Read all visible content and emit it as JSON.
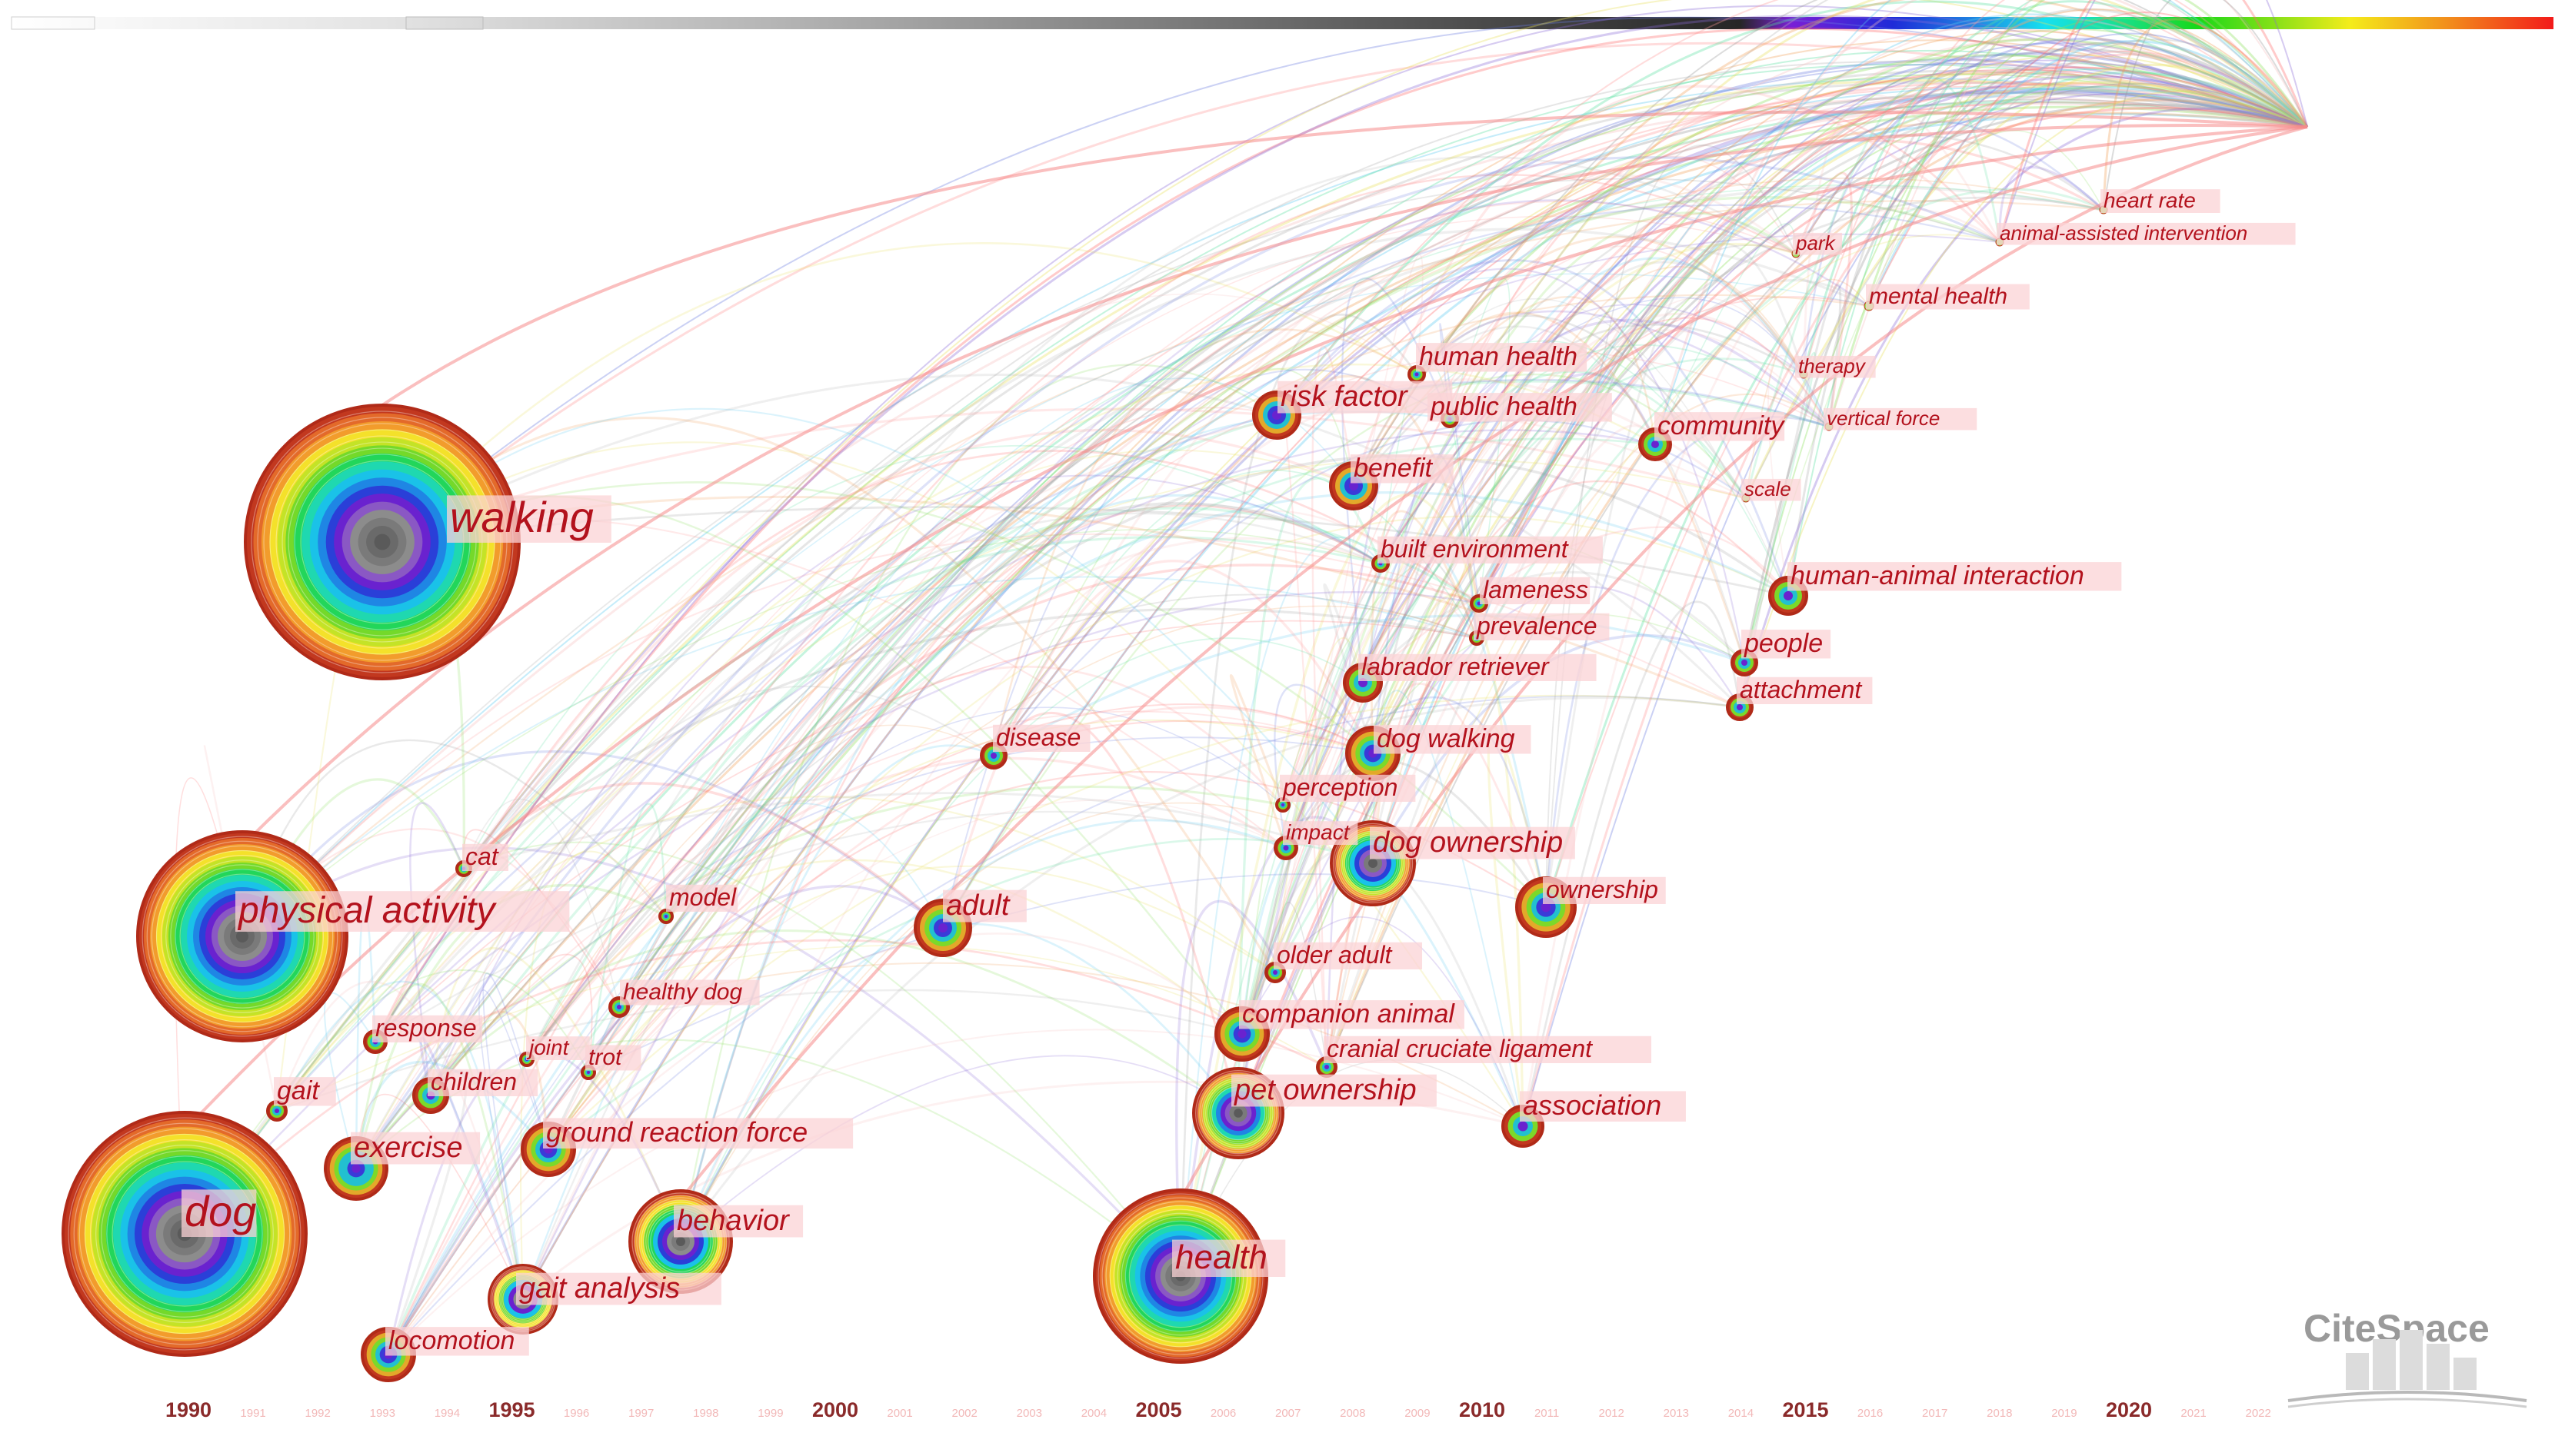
{
  "logo": {
    "name": "CiteSpace"
  },
  "colors": {
    "node_border": "#c2381f",
    "label_color": "#b3121d",
    "label_bg": "#fbd3d6",
    "timeline_gradient": [
      "#ffffff",
      "#e6e6e6",
      "#bdbdbd",
      "#8f8f8f",
      "#5a5a5a",
      "#2e2e2e",
      "#7a1fd6",
      "#1e2bd8",
      "#1f7fe0",
      "#16e0f0",
      "#19e08c",
      "#18d818",
      "#86e018",
      "#f4ec1a",
      "#f28a1c",
      "#f21a1a"
    ]
  },
  "timeline": {
    "major_years": [
      "1990",
      "1995",
      "2000",
      "2005",
      "2010",
      "2015",
      "2020"
    ],
    "minor_years": [
      "1991",
      "1992",
      "1993",
      "1994",
      "1996",
      "1997",
      "1998",
      "1999",
      "2001",
      "2002",
      "2003",
      "2004",
      "2006",
      "2007",
      "2008",
      "2009",
      "2011",
      "2012",
      "2013",
      "2014",
      "2016",
      "2017",
      "2018",
      "2019",
      "2021",
      "2022"
    ]
  },
  "nodes": [
    {
      "label": "walking",
      "year": 1990,
      "size": "xl"
    },
    {
      "label": "physical activity",
      "year": 1990,
      "size": "l"
    },
    {
      "label": "dog",
      "year": 1990,
      "size": "xl"
    },
    {
      "label": "health",
      "year": 2005,
      "size": "l"
    },
    {
      "label": "behavior",
      "year": 1997,
      "size": "m"
    },
    {
      "label": "gait analysis",
      "year": 1995,
      "size": "s"
    },
    {
      "label": "locomotion",
      "year": 1993,
      "size": "s"
    },
    {
      "label": "exercise",
      "year": 1993,
      "size": "s"
    },
    {
      "label": "ground reaction force",
      "year": 1995,
      "size": "s"
    },
    {
      "label": "gait",
      "year": 1992,
      "size": "xs"
    },
    {
      "label": "children",
      "year": 1994,
      "size": "xs"
    },
    {
      "label": "response",
      "year": 1993,
      "size": "xs"
    },
    {
      "label": "joint",
      "year": 1995,
      "size": "xs"
    },
    {
      "label": "trot",
      "year": 1996,
      "size": "xs"
    },
    {
      "label": "healthy dog",
      "year": 1997,
      "size": "xs"
    },
    {
      "label": "model",
      "year": 1997,
      "size": "xs"
    },
    {
      "label": "cat",
      "year": 1994,
      "size": "xs"
    },
    {
      "label": "disease",
      "year": 2002,
      "size": "xs"
    },
    {
      "label": "adult",
      "year": 2002,
      "size": "s"
    },
    {
      "label": "risk factor",
      "year": 2008,
      "size": "s"
    },
    {
      "label": "human health",
      "year": 2009,
      "size": "xs"
    },
    {
      "label": "public health",
      "year": 2009,
      "size": "xs"
    },
    {
      "label": "benefit",
      "year": 2008,
      "size": "s"
    },
    {
      "label": "built environment",
      "year": 2009,
      "size": "xs"
    },
    {
      "label": "lameness",
      "year": 2010,
      "size": "xs"
    },
    {
      "label": "prevalence",
      "year": 2010,
      "size": "xs"
    },
    {
      "label": "labrador retriever",
      "year": 2008,
      "size": "xs"
    },
    {
      "label": "dog walking",
      "year": 2008,
      "size": "s"
    },
    {
      "label": "perception",
      "year": 2007,
      "size": "xs"
    },
    {
      "label": "impact",
      "year": 2007,
      "size": "xs"
    },
    {
      "label": "dog ownership",
      "year": 2008,
      "size": "m"
    },
    {
      "label": "ownership",
      "year": 2011,
      "size": "s"
    },
    {
      "label": "older adult",
      "year": 2007,
      "size": "xs"
    },
    {
      "label": "companion animal",
      "year": 2007,
      "size": "s"
    },
    {
      "label": "cranial cruciate ligament",
      "year": 2008,
      "size": "xs"
    },
    {
      "label": "pet ownership",
      "year": 2007,
      "size": "m"
    },
    {
      "label": "association",
      "year": 2011,
      "size": "s"
    },
    {
      "label": "community",
      "year": 2012,
      "size": "xs"
    },
    {
      "label": "human-animal interaction",
      "year": 2014,
      "size": "s"
    },
    {
      "label": "people",
      "year": 2014,
      "size": "xs"
    },
    {
      "label": "attachment",
      "year": 2014,
      "size": "xs"
    },
    {
      "label": "park",
      "year": 2015,
      "size": "xs"
    },
    {
      "label": "mental health",
      "year": 2016,
      "size": "xs"
    },
    {
      "label": "therapy",
      "year": 2015,
      "size": "xs"
    },
    {
      "label": "vertical force",
      "year": 2015,
      "size": "xs"
    },
    {
      "label": "scale",
      "year": 2014,
      "size": "xs"
    },
    {
      "label": "heart rate",
      "year": 2019,
      "size": "xs"
    },
    {
      "label": "animal-assisted intervention",
      "year": 2017,
      "size": "xs"
    }
  ]
}
